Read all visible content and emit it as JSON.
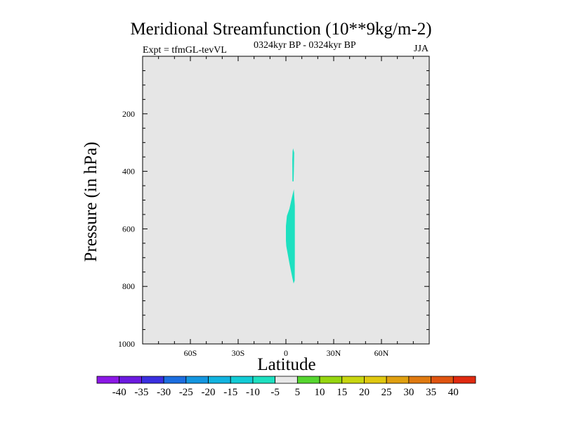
{
  "chart_data": {
    "type": "contour",
    "title": "Meridional Streamfunction (10**9kg/m-2)",
    "subtitle_left": "Expt = tfmGL-tevVL",
    "subtitle_center": "0324kyr BP - 0324kyr BP",
    "subtitle_right": "JJA",
    "xlabel": "Latitude",
    "ylabel": "Pressure (in hPa)",
    "xlim": [
      -90,
      90
    ],
    "ylim": [
      1000,
      0
    ],
    "x_ticks": [
      {
        "value": -60,
        "label": "60S"
      },
      {
        "value": -30,
        "label": "30S"
      },
      {
        "value": 0,
        "label": "0"
      },
      {
        "value": 30,
        "label": "30N"
      },
      {
        "value": 60,
        "label": "60N"
      }
    ],
    "y_ticks": [
      {
        "value": 200,
        "label": "200"
      },
      {
        "value": 400,
        "label": "400"
      },
      {
        "value": 600,
        "label": "600"
      },
      {
        "value": 800,
        "label": "800"
      },
      {
        "value": 1000,
        "label": "1000"
      }
    ],
    "background_color": "#e6e6e6",
    "contour_regions": [
      {
        "level_range": [
          -10,
          -5
        ],
        "color": "#1ee0c0",
        "points": [
          [
            4.5,
            320
          ],
          [
            5.2,
            335
          ],
          [
            5.0,
            400
          ],
          [
            4.8,
            435
          ],
          [
            4.1,
            435
          ],
          [
            4.0,
            360
          ],
          [
            4.2,
            330
          ]
        ]
      },
      {
        "level_range": [
          -10,
          -5
        ],
        "color": "#1ee0c0",
        "points": [
          [
            5.0,
            462
          ],
          [
            5.6,
            520
          ],
          [
            5.6,
            600
          ],
          [
            5.6,
            700
          ],
          [
            5.5,
            780
          ],
          [
            4.8,
            790
          ],
          [
            4.0,
            770
          ],
          [
            2.2,
            720
          ],
          [
            0.2,
            660
          ],
          [
            0,
            640
          ],
          [
            0,
            590
          ],
          [
            0.6,
            555
          ],
          [
            2.2,
            530
          ],
          [
            3.8,
            490
          ]
        ]
      }
    ],
    "colorbar": {
      "levels": [
        -40,
        -35,
        -30,
        -25,
        -20,
        -15,
        -10,
        -5,
        5,
        10,
        15,
        20,
        25,
        30,
        35,
        40
      ],
      "colors": [
        "#8c18e6",
        "#6c1ae0",
        "#3a2fe0",
        "#1c6ee0",
        "#1496e0",
        "#12b4e0",
        "#12ccd6",
        "#1ee0c0",
        "#e8e8e8",
        "#56d630",
        "#96d610",
        "#c8d610",
        "#e0c810",
        "#e0a010",
        "#e07a10",
        "#e05410",
        "#e02a10"
      ]
    }
  }
}
